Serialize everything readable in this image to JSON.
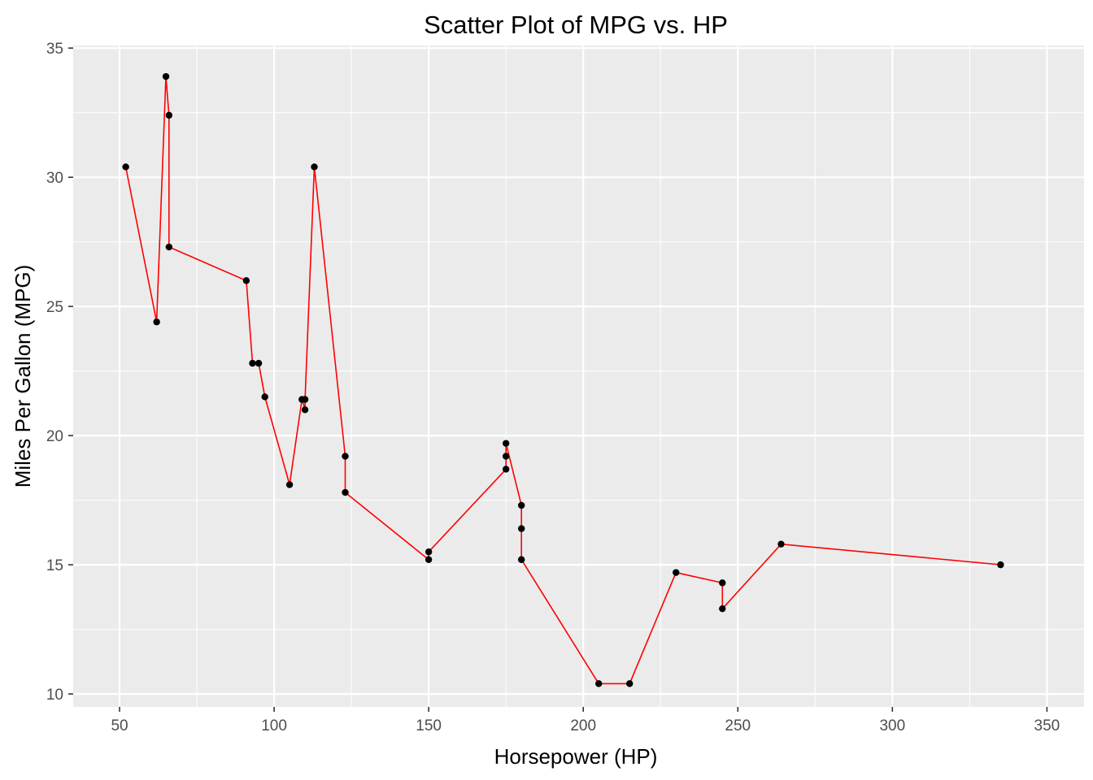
{
  "chart_data": {
    "type": "scatter",
    "title": "Scatter Plot of MPG vs. HP",
    "xlabel": "Horsepower (HP)",
    "ylabel": "Miles Per Gallon (MPG)",
    "xlim": [
      35,
      362
    ],
    "ylim": [
      9.5,
      35.1
    ],
    "x_ticks": [
      50,
      100,
      150,
      200,
      250,
      300,
      350
    ],
    "y_ticks": [
      10,
      15,
      20,
      25,
      30,
      35
    ],
    "grid": true,
    "colors": {
      "panel_background": "#ebebeb",
      "grid": "#ffffff",
      "points": "#000000",
      "line": "#ff0000"
    },
    "points": [
      {
        "x": 52,
        "y": 30.4
      },
      {
        "x": 62,
        "y": 24.4
      },
      {
        "x": 65,
        "y": 33.9
      },
      {
        "x": 66,
        "y": 32.4
      },
      {
        "x": 66,
        "y": 27.3
      },
      {
        "x": 91,
        "y": 26.0
      },
      {
        "x": 93,
        "y": 22.8
      },
      {
        "x": 95,
        "y": 22.8
      },
      {
        "x": 97,
        "y": 21.5
      },
      {
        "x": 105,
        "y": 18.1
      },
      {
        "x": 109,
        "y": 21.4
      },
      {
        "x": 110,
        "y": 21.0
      },
      {
        "x": 110,
        "y": 21.4
      },
      {
        "x": 113,
        "y": 30.4
      },
      {
        "x": 123,
        "y": 19.2
      },
      {
        "x": 123,
        "y": 17.8
      },
      {
        "x": 150,
        "y": 15.2
      },
      {
        "x": 150,
        "y": 15.5
      },
      {
        "x": 175,
        "y": 18.7
      },
      {
        "x": 175,
        "y": 19.2
      },
      {
        "x": 175,
        "y": 19.7
      },
      {
        "x": 180,
        "y": 17.3
      },
      {
        "x": 180,
        "y": 16.4
      },
      {
        "x": 180,
        "y": 15.2
      },
      {
        "x": 205,
        "y": 10.4
      },
      {
        "x": 215,
        "y": 10.4
      },
      {
        "x": 230,
        "y": 14.7
      },
      {
        "x": 245,
        "y": 14.3
      },
      {
        "x": 245,
        "y": 13.3
      },
      {
        "x": 264,
        "y": 15.8
      },
      {
        "x": 335,
        "y": 15.0
      }
    ]
  }
}
